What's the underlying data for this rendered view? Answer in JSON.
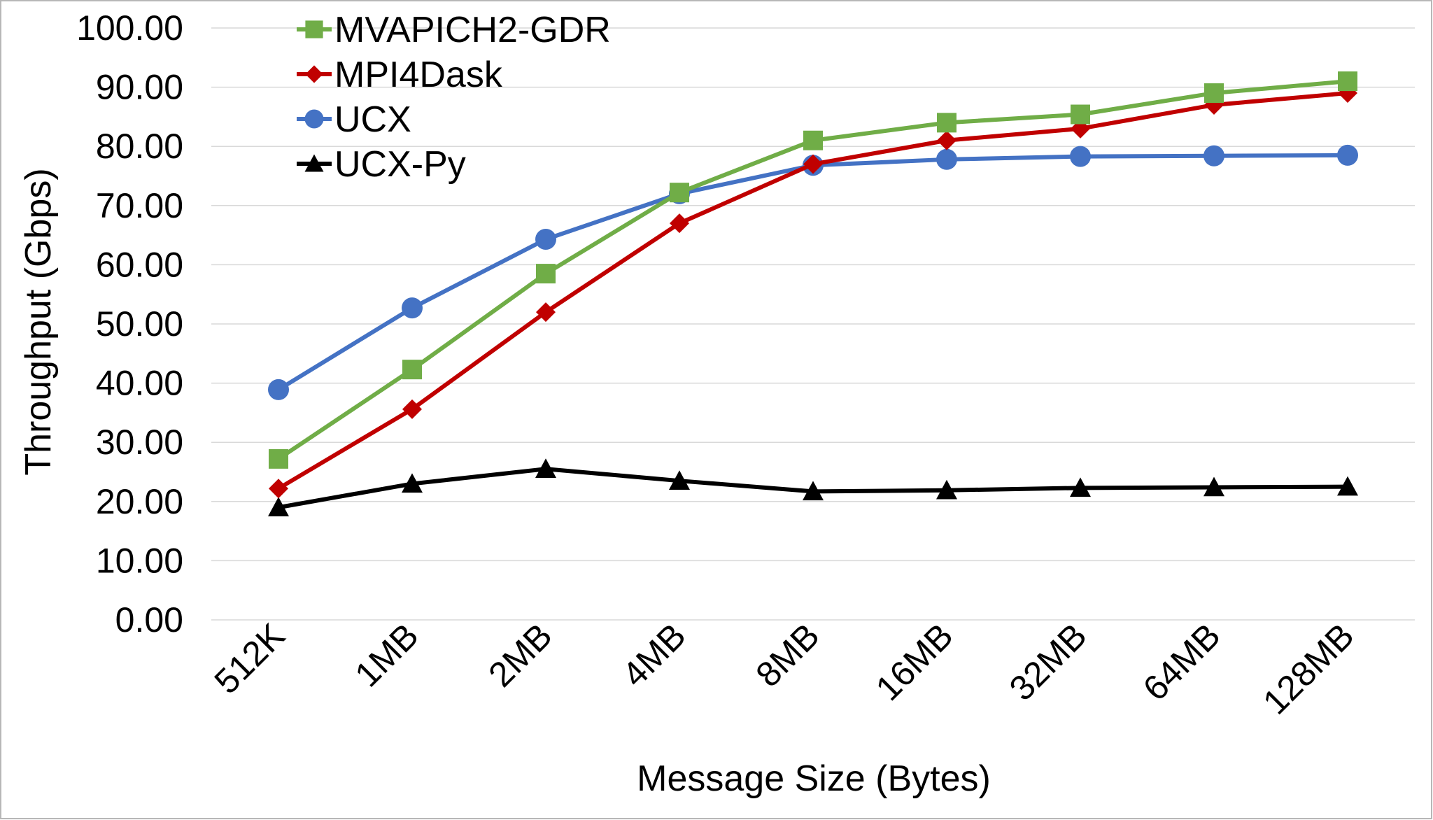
{
  "chart_data": {
    "type": "line",
    "title": "",
    "xlabel": "Message Size (Bytes)",
    "ylabel": "Throughput (Gbps)",
    "categories": [
      "512K",
      "1MB",
      "2MB",
      "4MB",
      "8MB",
      "16MB",
      "32MB",
      "64MB",
      "128MB"
    ],
    "ylim": [
      0,
      100
    ],
    "yticks": [
      "0.00",
      "10.00",
      "20.00",
      "30.00",
      "40.00",
      "50.00",
      "60.00",
      "70.00",
      "80.00",
      "90.00",
      "100.00"
    ],
    "ytick_values": [
      0,
      10,
      20,
      30,
      40,
      50,
      60,
      70,
      80,
      90,
      100
    ],
    "grid": true,
    "legend_position": "top-left",
    "series": [
      {
        "name": "MVAPICH2-GDR",
        "color": "#70ad47",
        "marker": "square",
        "values": [
          27.2,
          42.3,
          58.5,
          72.2,
          81.0,
          84.0,
          85.4,
          89.0,
          91.0
        ]
      },
      {
        "name": "MPI4Dask",
        "color": "#c00000",
        "marker": "diamond",
        "values": [
          22.2,
          35.6,
          52.0,
          67.0,
          77.0,
          81.0,
          83.0,
          87.0,
          89.0
        ]
      },
      {
        "name": "UCX",
        "color": "#4472c4",
        "marker": "circle",
        "values": [
          38.9,
          52.7,
          64.3,
          72.0,
          76.8,
          77.8,
          78.3,
          78.4,
          78.5
        ]
      },
      {
        "name": "UCX-Py",
        "color": "#000000",
        "marker": "triangle",
        "values": [
          19.0,
          23.0,
          25.5,
          23.5,
          21.7,
          21.9,
          22.3,
          22.4,
          22.5
        ]
      }
    ]
  }
}
